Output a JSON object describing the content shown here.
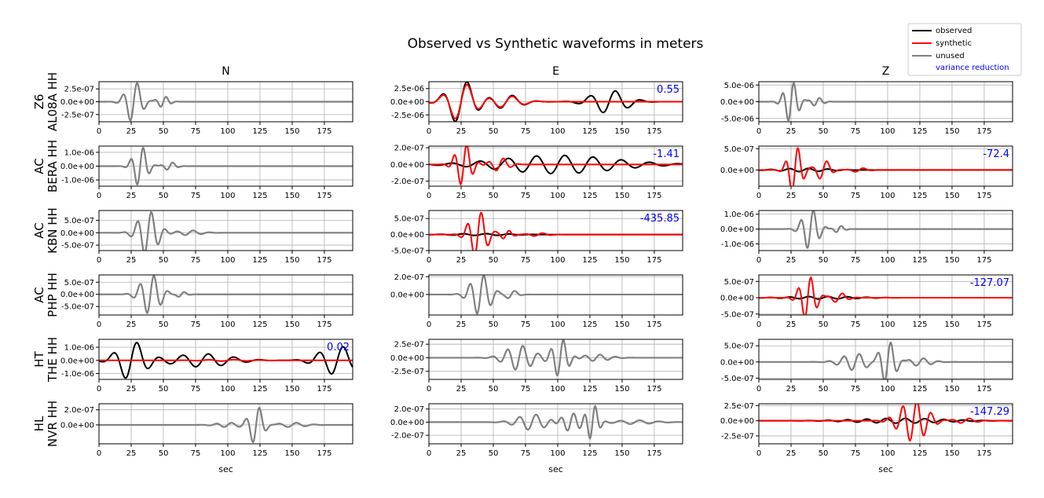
{
  "chart_data": {
    "type": "line",
    "title": "Observed vs Synthetic waveforms in meters",
    "columns": [
      "N",
      "E",
      "Z"
    ],
    "xlabel": "sec",
    "xlim": [
      0,
      197
    ],
    "xticks": [
      0,
      25,
      50,
      75,
      100,
      125,
      150,
      175
    ],
    "legend": {
      "placement": "top-right",
      "entries": [
        {
          "label": "observed",
          "color": "#000000",
          "kind": "line"
        },
        {
          "label": "synthetic",
          "color": "#ff0000",
          "kind": "line"
        },
        {
          "label": "unused",
          "color": "#808080",
          "kind": "line"
        },
        {
          "label": "variance reduction",
          "color": "#0000ff",
          "kind": "text"
        }
      ]
    },
    "grid": true,
    "stations": [
      {
        "network": "Z6",
        "code": "AL08A HH",
        "panels": [
          {
            "component": "N",
            "used": false,
            "ylim": [
              -3.9e-07,
              3.9e-07
            ],
            "yticks": [
              "2.5e-07",
              "0.0e+00",
              "-2.5e-07"
            ],
            "ytick_values": [
              2.5e-07,
              0,
              -2.5e-07
            ],
            "variance_reduction": null,
            "packets": [
              {
                "t0": 27,
                "width": 8,
                "period": 11.5,
                "amp": 4.1e-07
              },
              {
                "t0": 50,
                "width": 6,
                "period": 9,
                "amp": 1.1e-07
              }
            ]
          },
          {
            "component": "E",
            "used": true,
            "ylim": [
              -3.8e-06,
              3.8e-06
            ],
            "yticks": [
              "2.5e-06",
              "0.0e+00",
              "-2.5e-06"
            ],
            "ytick_values": [
              2.5e-06,
              0,
              -2.5e-06
            ],
            "variance_reduction": "0.55",
            "obs_packets": [
              {
                "t0": 25,
                "width": 14,
                "period": 20,
                "amp": 4.2e-06
              },
              {
                "t0": 60,
                "width": 16,
                "period": 20,
                "amp": 1.3e-06
              },
              {
                "t0": 140,
                "width": 18,
                "period": 20,
                "amp": 2.2e-06
              }
            ],
            "syn_packets": [
              {
                "t0": 25,
                "width": 14,
                "period": 20,
                "amp": 3.6e-06
              },
              {
                "t0": 60,
                "width": 16,
                "period": 20,
                "amp": 1.1e-06
              }
            ]
          },
          {
            "component": "Z",
            "used": false,
            "ylim": [
              -6e-06,
              6e-06
            ],
            "yticks": [
              "5.0e-06",
              "0.0e+00",
              "-5.0e-06"
            ],
            "ytick_values": [
              5e-06,
              0,
              -5e-06
            ],
            "variance_reduction": null,
            "packets": [
              {
                "t0": 25,
                "width": 7,
                "period": 9,
                "amp": 6.2e-06
              },
              {
                "t0": 45,
                "width": 6,
                "period": 9,
                "amp": 1.3e-06
              }
            ]
          }
        ]
      },
      {
        "network": "AC",
        "code": "BERA HH",
        "panels": [
          {
            "component": "N",
            "used": false,
            "ylim": [
              -1.45e-06,
              1.45e-06
            ],
            "yticks": [
              "1.0e-06",
              "0.0e+00",
              "-1.0e-06"
            ],
            "ytick_values": [
              1e-06,
              0,
              -1e-06
            ],
            "variance_reduction": null,
            "packets": [
              {
                "t0": 32,
                "width": 7,
                "period": 10,
                "amp": 1.5e-06
              },
              {
                "t0": 55,
                "width": 6,
                "period": 10,
                "amp": 3e-07
              }
            ]
          },
          {
            "component": "E",
            "used": true,
            "ylim": [
              -2.6e-07,
              2.2e-07
            ],
            "yticks": [
              "2.0e-07",
              "0.0e+00",
              "-2.0e-07"
            ],
            "ytick_values": [
              2e-07,
              0,
              -2e-07
            ],
            "variance_reduction": "-1.41",
            "obs_packets": [
              {
                "t0": 100,
                "width": 60,
                "period": 22,
                "amp": 1.1e-07
              }
            ],
            "syn_packets": [
              {
                "t0": 27,
                "width": 8,
                "period": 10,
                "amp": 2.6e-07
              },
              {
                "t0": 55,
                "width": 9,
                "period": 12,
                "amp": 8e-08
              }
            ]
          },
          {
            "component": "Z",
            "used": true,
            "ylim": [
              -3.8e-07,
              5.6e-07
            ],
            "yticks": [
              "5.0e-07",
              "0.0e+00"
            ],
            "ytick_values": [
              5e-07,
              0
            ],
            "variance_reduction": "-72.4",
            "obs_packets": [
              {
                "t0": 35,
                "width": 25,
                "period": 15,
                "amp": 4e-08
              }
            ],
            "syn_packets": [
              {
                "t0": 28,
                "width": 7,
                "period": 10,
                "amp": 5.8e-07
              },
              {
                "t0": 50,
                "width": 7,
                "period": 12,
                "amp": 2.4e-07
              },
              {
                "t0": 78,
                "width": 8,
                "period": 14,
                "amp": 5e-08
              }
            ]
          }
        ]
      },
      {
        "network": "AC",
        "code": "KBN HH",
        "panels": [
          {
            "component": "N",
            "used": false,
            "ylim": [
              -7.2e-07,
              9e-07
            ],
            "yticks": [
              "5.0e-07",
              "0.0e+00",
              "-5.0e-07"
            ],
            "ytick_values": [
              5e-07,
              0,
              -5e-07
            ],
            "variance_reduction": null,
            "packets": [
              {
                "t0": 38,
                "width": 10,
                "period": 11,
                "amp": 9e-07
              },
              {
                "t0": 70,
                "width": 12,
                "period": 13,
                "amp": 1e-07
              }
            ]
          },
          {
            "component": "E",
            "used": true,
            "ylim": [
              -5e-07,
              7.5e-07
            ],
            "yticks": [
              "5.0e-07",
              "0.0e+00",
              "-5.0e-07"
            ],
            "ytick_values": [
              5e-07,
              0,
              -5e-07
            ],
            "variance_reduction": "-435.85",
            "obs_packets": [
              {
                "t0": 40,
                "width": 30,
                "period": 18,
                "amp": 3e-08
              }
            ],
            "syn_packets": [
              {
                "t0": 38,
                "width": 9,
                "period": 11,
                "amp": 7.5e-07
              },
              {
                "t0": 60,
                "width": 6,
                "period": 10,
                "amp": 1.4e-07
              },
              {
                "t0": 85,
                "width": 10,
                "period": 14,
                "amp": 5e-08
              }
            ]
          },
          {
            "component": "Z",
            "used": false,
            "ylim": [
              -1.45e-06,
              1.25e-06
            ],
            "yticks": [
              "1.0e-06",
              "0.0e+00",
              "-1.0e-06"
            ],
            "ytick_values": [
              1e-06,
              0,
              -1e-06
            ],
            "variance_reduction": null,
            "packets": [
              {
                "t0": 40,
                "width": 8,
                "period": 10,
                "amp": 1.4e-06
              },
              {
                "t0": 62,
                "width": 5,
                "period": 9,
                "amp": 2.5e-07
              }
            ]
          }
        ]
      },
      {
        "network": "AC",
        "code": "PHP HH",
        "panels": [
          {
            "component": "N",
            "used": false,
            "ylim": [
              -8.5e-07,
              8e-07
            ],
            "yticks": [
              "5.0e-07",
              "0.0e+00",
              "-5.0e-07"
            ],
            "ytick_values": [
              5e-07,
              0,
              -5e-07
            ],
            "variance_reduction": null,
            "packets": [
              {
                "t0": 40,
                "width": 10,
                "period": 11,
                "amp": 8.2e-07
              },
              {
                "t0": 64,
                "width": 5,
                "period": 10,
                "amp": 1.2e-07
              }
            ]
          },
          {
            "component": "E",
            "used": false,
            "ylim": [
              -2.3e-07,
              2.2e-07
            ],
            "yticks": [
              "2.0e-07",
              "0.0e+00"
            ],
            "ytick_values": [
              2e-07,
              0
            ],
            "variance_reduction": null,
            "packets": [
              {
                "t0": 40,
                "width": 10,
                "period": 11,
                "amp": 2.3e-07
              },
              {
                "t0": 64,
                "width": 6,
                "period": 12,
                "amp": 5e-08
              }
            ]
          },
          {
            "component": "Z",
            "used": true,
            "ylim": [
              -5.3e-07,
              7e-07
            ],
            "yticks": [
              "5.0e-07",
              "0.0e+00",
              "-5.0e-07"
            ],
            "ytick_values": [
              5e-07,
              0,
              -5e-07
            ],
            "variance_reduction": "-127.07",
            "obs_packets": [
              {
                "t0": 50,
                "width": 35,
                "period": 15,
                "amp": 4e-08
              }
            ],
            "syn_packets": [
              {
                "t0": 38,
                "width": 8,
                "period": 10,
                "amp": 6.8e-07
              },
              {
                "t0": 62,
                "width": 8,
                "period": 12,
                "amp": 1.5e-07
              }
            ]
          }
        ]
      },
      {
        "network": "HT",
        "code": "THE HH",
        "panels": [
          {
            "component": "N",
            "used": true,
            "ylim": [
              -1.45e-06,
              1.6e-06
            ],
            "yticks": [
              "1.0e-06",
              "0.0e+00",
              "-1.0e-06"
            ],
            "ytick_values": [
              1e-06,
              0,
              -1e-06
            ],
            "variance_reduction": "0.02",
            "obs_packets": [
              {
                "t0": 25,
                "width": 14,
                "period": 19,
                "amp": 1.5e-06
              },
              {
                "t0": 80,
                "width": 30,
                "period": 20,
                "amp": 5e-07
              },
              {
                "t0": 185,
                "width": 18,
                "period": 19,
                "amp": 1.1e-06
              }
            ],
            "syn_packets": [
              {
                "t0": 100,
                "width": 25,
                "period": 20,
                "amp": 6e-08
              }
            ]
          },
          {
            "component": "E",
            "used": false,
            "ylim": [
              -4e-07,
              3.4e-07
            ],
            "yticks": [
              "2.5e-07",
              "0.0e+00",
              "-2.5e-07"
            ],
            "ytick_values": [
              2.5e-07,
              0,
              -2.5e-07
            ],
            "variance_reduction": null,
            "packets": [
              {
                "t0": 70,
                "width": 14,
                "period": 12,
                "amp": 2.3e-07
              },
              {
                "t0": 102,
                "width": 8,
                "period": 10,
                "amp": 3.6e-07
              },
              {
                "t0": 130,
                "width": 14,
                "period": 12,
                "amp": 6e-08
              }
            ]
          },
          {
            "component": "Z",
            "used": false,
            "ylim": [
              -5.4e-07,
              7e-07
            ],
            "yticks": [
              "5.0e-07",
              "0.0e+00",
              "-5.0e-07"
            ],
            "ytick_values": [
              5e-07,
              0,
              -5e-07
            ],
            "variance_reduction": null,
            "packets": [
              {
                "t0": 75,
                "width": 14,
                "period": 12,
                "amp": 2.6e-07
              },
              {
                "t0": 100,
                "width": 8,
                "period": 10,
                "amp": 6.5e-07
              },
              {
                "t0": 125,
                "width": 12,
                "period": 12,
                "amp": 1.2e-07
              }
            ]
          }
        ]
      },
      {
        "network": "HL",
        "code": "NVR HH",
        "panels": [
          {
            "component": "N",
            "used": false,
            "ylim": [
              -2.5e-07,
              2.8e-07
            ],
            "yticks": [
              "2.0e-07",
              "0.0e+00"
            ],
            "ytick_values": [
              2e-07,
              0
            ],
            "variance_reduction": null,
            "packets": [
              {
                "t0": 100,
                "width": 12,
                "period": 12,
                "amp": 3e-08
              },
              {
                "t0": 122,
                "width": 7,
                "period": 11,
                "amp": 2.6e-07
              },
              {
                "t0": 150,
                "width": 14,
                "period": 14,
                "amp": 3e-08
              }
            ]
          },
          {
            "component": "E",
            "used": false,
            "ylim": [
              -3.3e-07,
              2.8e-07
            ],
            "yticks": [
              "2.0e-07",
              "0.0e+00",
              "-2.0e-07"
            ],
            "ytick_values": [
              2e-07,
              0,
              -2e-07
            ],
            "variance_reduction": null,
            "packets": [
              {
                "t0": 80,
                "width": 15,
                "period": 13,
                "amp": 1.2e-07
              },
              {
                "t0": 110,
                "width": 10,
                "period": 10,
                "amp": 1.4e-07
              },
              {
                "t0": 127,
                "width": 6,
                "period": 9,
                "amp": 2.8e-07
              },
              {
                "t0": 160,
                "width": 20,
                "period": 15,
                "amp": 3e-08
              }
            ]
          },
          {
            "component": "Z",
            "used": true,
            "ylim": [
              -3.8e-07,
              2.8e-07
            ],
            "yticks": [
              "2.5e-07",
              "0.0e+00",
              "-2.5e-07"
            ],
            "ytick_values": [
              2.5e-07,
              0,
              -2.5e-07
            ],
            "variance_reduction": "-147.29",
            "obs_packets": [
              {
                "t0": 110,
                "width": 45,
                "period": 15,
                "amp": 4e-08
              }
            ],
            "syn_packets": [
              {
                "t0": 120,
                "width": 14,
                "period": 11,
                "amp": 3.4e-07
              },
              {
                "t0": 160,
                "width": 12,
                "period": 14,
                "amp": 4e-08
              }
            ]
          }
        ]
      }
    ]
  }
}
